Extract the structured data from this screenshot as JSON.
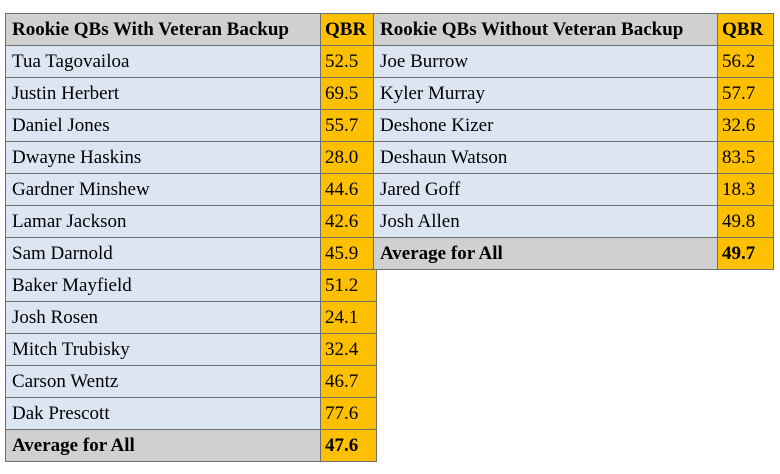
{
  "with_backup": {
    "header": "Rookie QBs With Veteran Backup",
    "qbr_header": "QBR",
    "rows": [
      {
        "name": "Tua Tagovailoa",
        "qbr": "52.5"
      },
      {
        "name": "Justin Herbert",
        "qbr": "69.5"
      },
      {
        "name": "Daniel Jones",
        "qbr": "55.7"
      },
      {
        "name": "Dwayne Haskins",
        "qbr": "28.0"
      },
      {
        "name": "Gardner Minshew",
        "qbr": "44.6"
      },
      {
        "name": "Lamar Jackson",
        "qbr": "42.6"
      },
      {
        "name": "Sam Darnold",
        "qbr": "45.9"
      },
      {
        "name": "Baker Mayfield",
        "qbr": "51.2"
      },
      {
        "name": "Josh Rosen",
        "qbr": "24.1"
      },
      {
        "name": "Mitch Trubisky",
        "qbr": "32.4"
      },
      {
        "name": "Carson Wentz",
        "qbr": "46.7"
      },
      {
        "name": "Dak Prescott",
        "qbr": "77.6"
      }
    ],
    "average_label": "Average for All",
    "average_value": "47.6"
  },
  "without_backup": {
    "header": "Rookie QBs Without Veteran Backup",
    "qbr_header": "QBR",
    "rows": [
      {
        "name": "Joe Burrow",
        "qbr": "56.2"
      },
      {
        "name": "Kyler Murray",
        "qbr": "57.7"
      },
      {
        "name": "Deshone Kizer",
        "qbr": "32.6"
      },
      {
        "name": "Deshaun Watson",
        "qbr": "83.5"
      },
      {
        "name": "Jared Goff",
        "qbr": "18.3"
      },
      {
        "name": "Josh Allen",
        "qbr": "49.8"
      }
    ],
    "average_label": "Average for All",
    "average_value": "49.7"
  }
}
